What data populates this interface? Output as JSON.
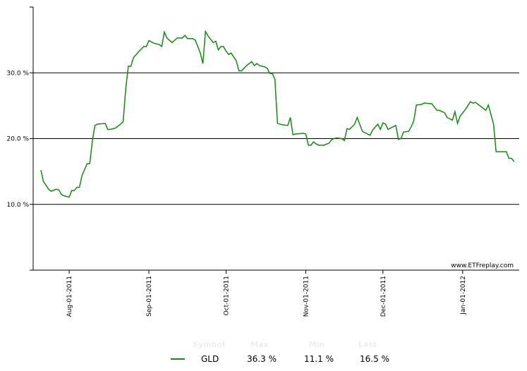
{
  "chart_data": {
    "type": "line",
    "watermark": "www.ETFreplay.com",
    "x": [
      "2011-07-21",
      "2011-07-22",
      "2011-07-23",
      "2011-07-24",
      "2011-07-25",
      "2011-07-27",
      "2011-07-28",
      "2011-07-29",
      "2011-07-30",
      "2011-08-01",
      "2011-08-02",
      "2011-08-03",
      "2011-08-04",
      "2011-08-05",
      "2011-08-06",
      "2011-08-08",
      "2011-08-09",
      "2011-08-10",
      "2011-08-11",
      "2011-08-12",
      "2011-08-15",
      "2011-08-16",
      "2011-08-17",
      "2011-08-19",
      "2011-08-21",
      "2011-08-22",
      "2011-08-23",
      "2011-08-24",
      "2011-08-25",
      "2011-08-26",
      "2011-08-28",
      "2011-08-30",
      "2011-08-31",
      "2011-09-01",
      "2011-09-03",
      "2011-09-05",
      "2011-09-06",
      "2011-09-07",
      "2011-09-08",
      "2011-09-10",
      "2011-09-12",
      "2011-09-14",
      "2011-09-15",
      "2011-09-16",
      "2011-09-18",
      "2011-09-19",
      "2011-09-21",
      "2011-09-22",
      "2011-09-23",
      "2011-09-24",
      "2011-09-26",
      "2011-09-27",
      "2011-09-28",
      "2011-09-29",
      "2011-09-30",
      "2011-10-01",
      "2011-10-02",
      "2011-10-03",
      "2011-10-05",
      "2011-10-06",
      "2011-10-07",
      "2011-10-09",
      "2011-10-11",
      "2011-10-12",
      "2011-10-13",
      "2011-10-14",
      "2011-10-16",
      "2011-10-17",
      "2011-10-18",
      "2011-10-19",
      "2011-10-20",
      "2011-10-21",
      "2011-10-23",
      "2011-10-25",
      "2011-10-26",
      "2011-10-27",
      "2011-10-28",
      "2011-10-31",
      "2011-11-01",
      "2011-11-02",
      "2011-11-03",
      "2011-11-04",
      "2011-11-05",
      "2011-11-06",
      "2011-11-08",
      "2011-11-10",
      "2011-11-11",
      "2011-11-12",
      "2011-11-13",
      "2011-11-15",
      "2011-11-16",
      "2011-11-17",
      "2011-11-18",
      "2011-11-20",
      "2011-11-21",
      "2011-11-23",
      "2011-11-24",
      "2011-11-26",
      "2011-11-27",
      "2011-11-29",
      "2011-11-30",
      "2011-12-01",
      "2011-12-02",
      "2011-12-03",
      "2011-12-04",
      "2011-12-05",
      "2011-12-06",
      "2011-12-07",
      "2011-12-08",
      "2011-12-09",
      "2011-12-11",
      "2011-12-12",
      "2011-12-13",
      "2011-12-14",
      "2011-12-16",
      "2011-12-17",
      "2011-12-20",
      "2011-12-22",
      "2011-12-23",
      "2011-12-25",
      "2011-12-26",
      "2011-12-28",
      "2011-12-29",
      "2011-12-30",
      "2011-12-31",
      "2012-01-02",
      "2012-01-04",
      "2012-01-05",
      "2012-01-06",
      "2012-01-09",
      "2012-01-10",
      "2012-01-11",
      "2012-01-13",
      "2012-01-14",
      "2012-01-18",
      "2012-01-19",
      "2012-01-20",
      "2012-01-21"
    ],
    "series": [
      {
        "name": "GLD",
        "color": "#138a13",
        "values": [
          15.2,
          13.5,
          12.9,
          12.3,
          12.0,
          12.3,
          12.2,
          11.5,
          11.3,
          11.1,
          12.1,
          12.1,
          12.6,
          12.6,
          14.4,
          16.2,
          16.2,
          19.6,
          22.0,
          22.2,
          22.3,
          21.4,
          21.4,
          21.6,
          22.2,
          22.6,
          27.6,
          31.0,
          31.0,
          32.3,
          33.2,
          34.0,
          34.0,
          34.9,
          34.5,
          34.3,
          34.0,
          36.2,
          35.3,
          34.6,
          35.3,
          35.3,
          35.7,
          35.2,
          35.2,
          35.0,
          33.0,
          31.4,
          36.3,
          35.6,
          34.6,
          34.8,
          33.5,
          34.0,
          34.0,
          33.3,
          32.8,
          33.0,
          31.8,
          30.3,
          30.3,
          31.1,
          31.7,
          31.1,
          31.4,
          31.1,
          30.9,
          30.7,
          29.9,
          29.9,
          29.0,
          22.3,
          22.1,
          22.0,
          23.2,
          20.6,
          20.7,
          20.8,
          20.7,
          19.0,
          19.0,
          19.5,
          19.2,
          19.0,
          19.0,
          19.3,
          19.8,
          20.0,
          20.1,
          20.0,
          19.7,
          21.5,
          21.4,
          22.2,
          23.2,
          21.1,
          20.9,
          20.5,
          21.3,
          22.2,
          21.4,
          22.4,
          22.2,
          21.4,
          21.6,
          21.8,
          22.0,
          19.9,
          20.0,
          21.0,
          21.1,
          21.8,
          22.7,
          25.1,
          25.2,
          25.4,
          25.3,
          24.3,
          24.3,
          23.9,
          23.2,
          22.8,
          24.1,
          22.3,
          23.4,
          24.4,
          25.6,
          25.4,
          25.5,
          24.6,
          24.3,
          25.1,
          22.2,
          18.0,
          18.0,
          17.0,
          17.0,
          16.5
        ]
      }
    ],
    "xlim": [
      "2011-07-18",
      "2012-01-23"
    ],
    "xticks": [
      {
        "value": "2011-08-01",
        "label": "Aug-01-2011"
      },
      {
        "value": "2011-09-01",
        "label": "Sep-01-2011"
      },
      {
        "value": "2011-10-01",
        "label": "Oct-01-2011"
      },
      {
        "value": "2011-11-01",
        "label": "Nov-01-2011"
      },
      {
        "value": "2011-12-01",
        "label": "Dec-01-2011"
      },
      {
        "value": "2012-01-01",
        "label": "Jan-01-2012"
      }
    ],
    "ylim": [
      0,
      40
    ],
    "yticks": [
      {
        "value": 10,
        "label": "10.0 %"
      },
      {
        "value": 20,
        "label": "20.0 %"
      },
      {
        "value": 30,
        "label": "30.0 %"
      }
    ],
    "grid": true,
    "stats": {
      "headers": [
        "Symbol",
        "Max",
        "Min",
        "Last"
      ],
      "rows": [
        [
          "GLD",
          "36.3 %",
          "11.1 %",
          "16.5 %"
        ]
      ]
    }
  }
}
